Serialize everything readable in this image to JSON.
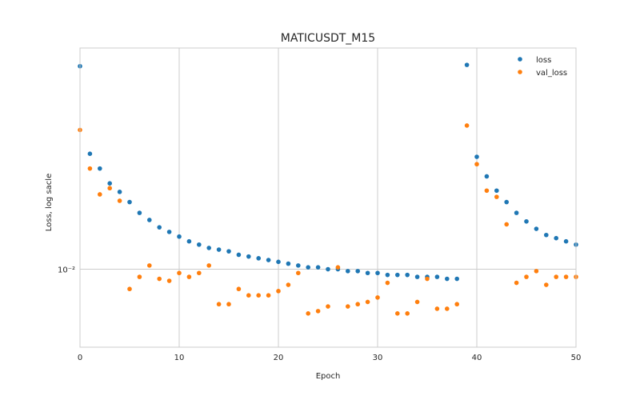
{
  "chart_data": {
    "type": "scatter",
    "title": "MATICUSDT_M15",
    "xlabel": "Epoch",
    "ylabel": "Loss, log sacle",
    "xlim": [
      0,
      50
    ],
    "ylim": [
      0.0066,
      0.0325
    ],
    "yscale": "log",
    "grid": true,
    "legend_position": "top-right",
    "x_ticks": [
      0,
      10,
      20,
      30,
      40,
      50
    ],
    "y_ticks": [
      {
        "value": 0.01,
        "label": "10⁻²"
      }
    ],
    "series": [
      {
        "name": "loss",
        "color": "#1f77b4",
        "x": [
          0,
          1,
          2,
          3,
          4,
          5,
          6,
          7,
          8,
          9,
          10,
          11,
          12,
          13,
          14,
          15,
          16,
          17,
          18,
          19,
          20,
          21,
          22,
          23,
          24,
          25,
          26,
          27,
          28,
          29,
          30,
          31,
          32,
          33,
          34,
          35,
          36,
          37,
          38,
          39,
          40,
          41,
          42,
          43,
          44,
          45,
          46,
          47,
          48,
          49,
          50
        ],
        "y": [
          0.0295,
          0.0185,
          0.0171,
          0.0158,
          0.0151,
          0.0143,
          0.0135,
          0.013,
          0.0125,
          0.0122,
          0.0119,
          0.0116,
          0.0114,
          0.0112,
          0.0111,
          0.011,
          0.0108,
          0.0107,
          0.0106,
          0.0105,
          0.0104,
          0.0103,
          0.0102,
          0.0101,
          0.0101,
          0.01,
          0.01,
          0.0099,
          0.0099,
          0.0098,
          0.0098,
          0.0097,
          0.0097,
          0.0097,
          0.0096,
          0.0096,
          0.0096,
          0.0095,
          0.0095,
          0.0297,
          0.0182,
          0.0164,
          0.0152,
          0.0143,
          0.0135,
          0.0129,
          0.0124,
          0.012,
          0.0118,
          0.0116,
          0.0114
        ]
      },
      {
        "name": "val_loss",
        "color": "#ff7f0e",
        "x": [
          0,
          1,
          2,
          3,
          4,
          5,
          6,
          7,
          8,
          9,
          10,
          11,
          12,
          13,
          14,
          15,
          16,
          17,
          18,
          19,
          20,
          21,
          22,
          23,
          24,
          25,
          26,
          27,
          28,
          29,
          30,
          31,
          32,
          33,
          34,
          35,
          36,
          37,
          38,
          39,
          40,
          41,
          42,
          43,
          44,
          45,
          46,
          47,
          48,
          49,
          50
        ],
        "y": [
          0.021,
          0.0171,
          0.0149,
          0.0154,
          0.0144,
          0.009,
          0.0096,
          0.0102,
          0.0095,
          0.0094,
          0.0098,
          0.0096,
          0.0098,
          0.0102,
          0.0083,
          0.0083,
          0.009,
          0.0087,
          0.0087,
          0.0087,
          0.0089,
          0.0092,
          0.0098,
          0.0079,
          0.008,
          0.0082,
          0.0101,
          0.0082,
          0.0083,
          0.0084,
          0.0086,
          0.0093,
          0.0079,
          0.0079,
          0.0084,
          0.0095,
          0.0081,
          0.0081,
          0.0083,
          0.0215,
          0.0175,
          0.0152,
          0.0147,
          0.0127,
          0.0093,
          0.0096,
          0.0099,
          0.0092,
          0.0096,
          0.0096,
          0.0096
        ]
      }
    ]
  }
}
